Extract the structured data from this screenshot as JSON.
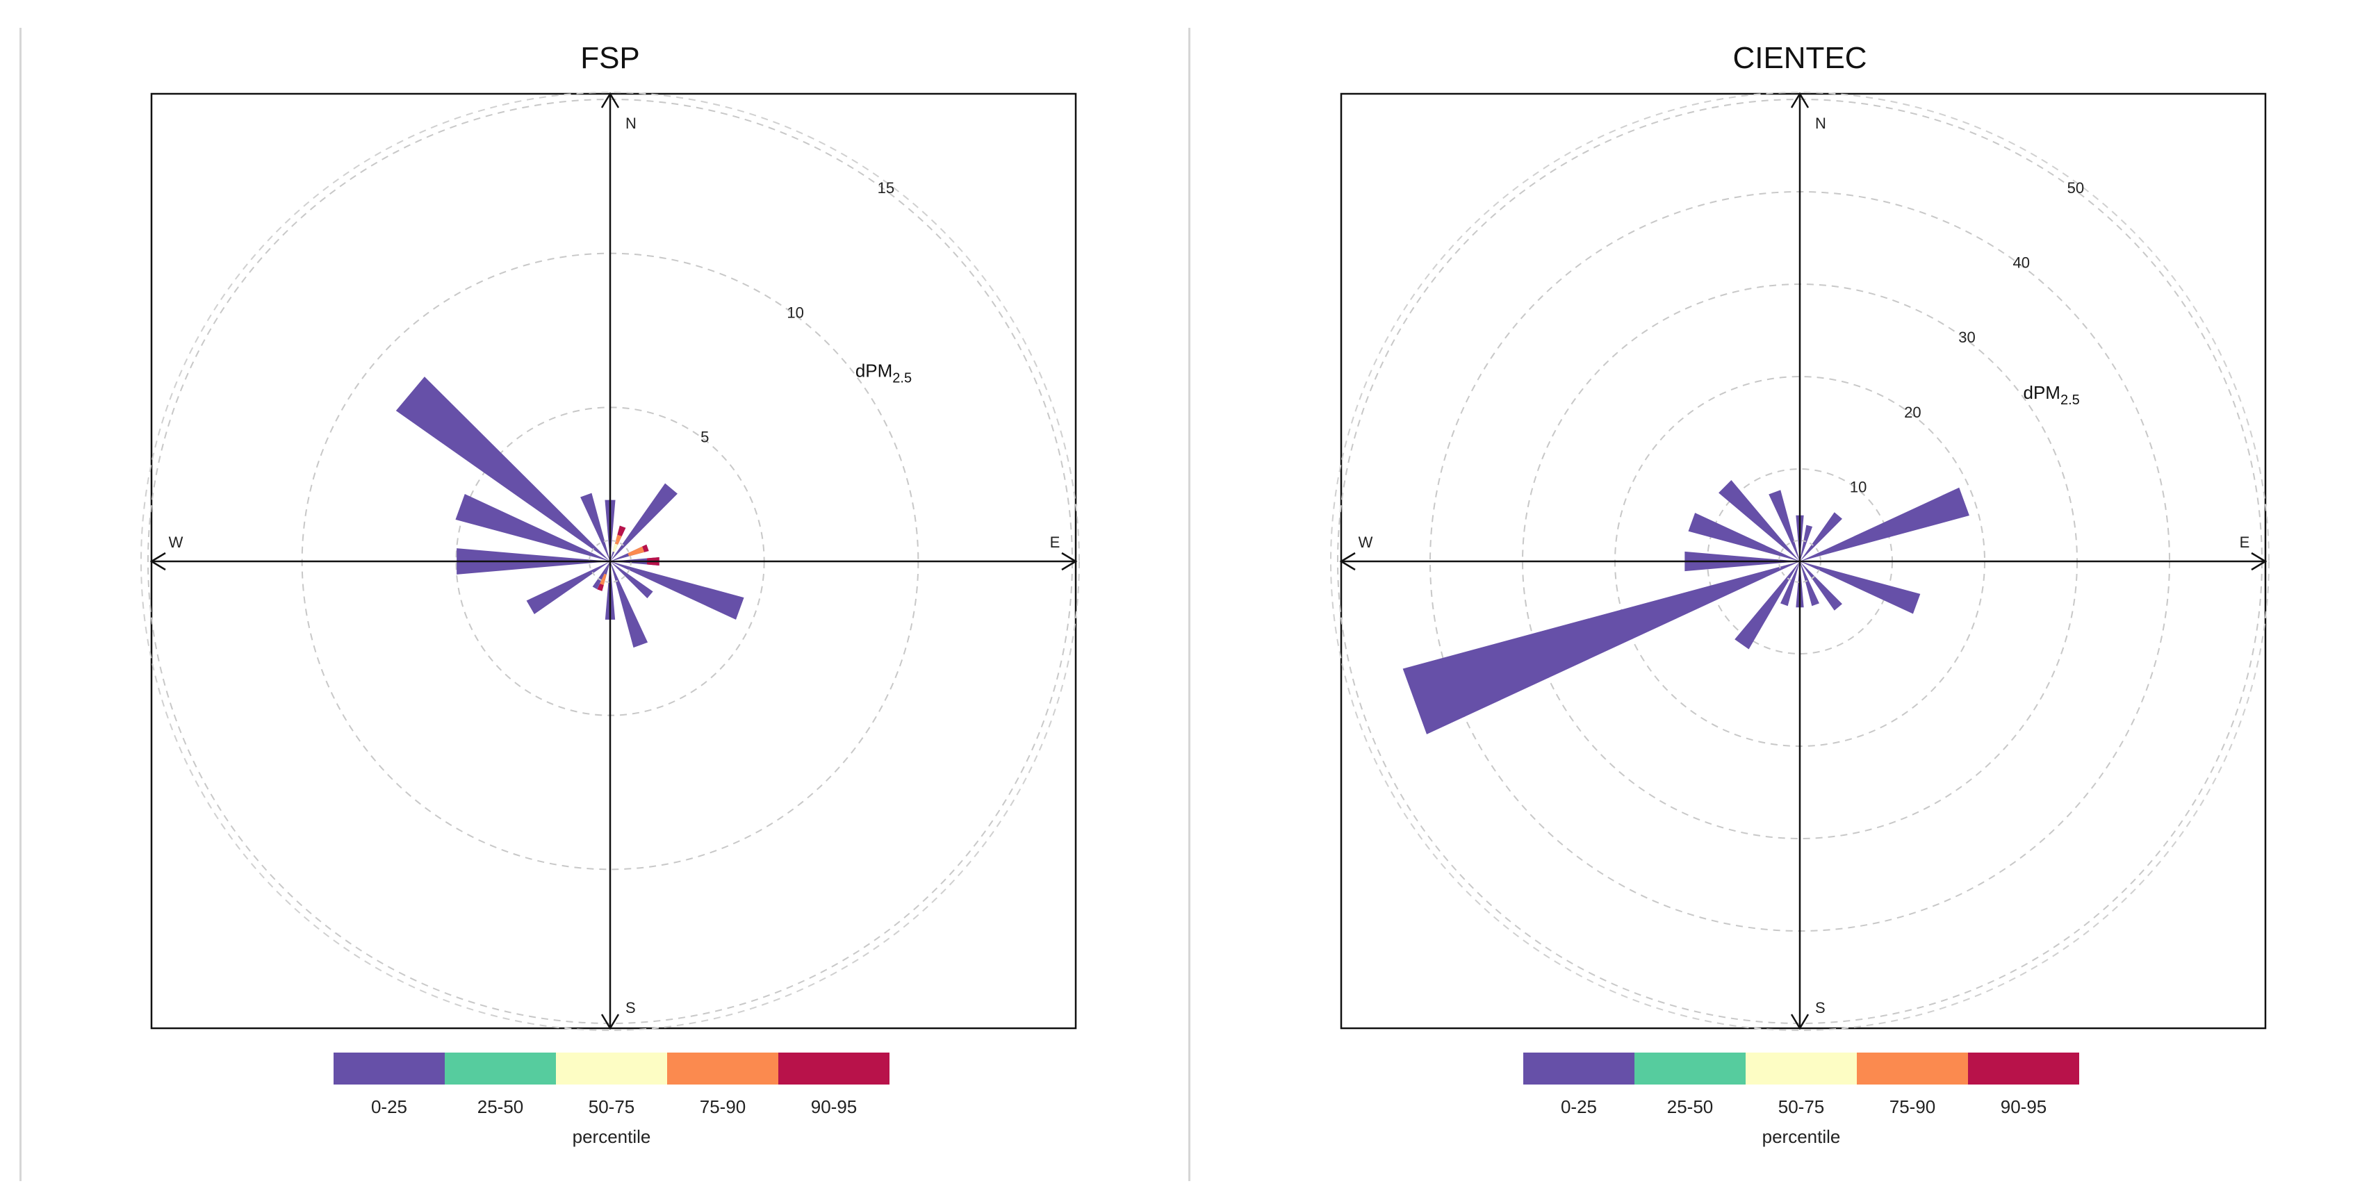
{
  "chart_data": [
    {
      "type": "polar-percentile-rose",
      "title": "FSP",
      "unit_main": "dPM",
      "unit_sub": "2.5",
      "directions": [
        "N",
        "E",
        "S",
        "W"
      ],
      "radial_ticks": [
        5,
        10,
        15
      ],
      "rmax": 15,
      "bins": [
        "0-25",
        "25-50",
        "50-75",
        "75-90",
        "90-95"
      ],
      "legend_title": "percentile",
      "petals": [
        {
          "angle": 0,
          "value": 2.0
        },
        {
          "angle": 20,
          "value": 1.2,
          "upper": [
            {
              "bin": "50-75",
              "to": 0.6
            },
            {
              "bin": "75-90",
              "to": 0.9
            },
            {
              "bin": "90-95",
              "to": 1.2
            }
          ]
        },
        {
          "angle": 40,
          "value": 3.1
        },
        {
          "angle": 70,
          "value": 1.3,
          "upper": [
            {
              "bin": "75-90",
              "to": 1.15
            },
            {
              "bin": "90-95",
              "to": 1.3
            }
          ]
        },
        {
          "angle": 90,
          "value": 1.6,
          "upper": [
            {
              "bin": "90-95",
              "to": 1.6
            }
          ]
        },
        {
          "angle": 110,
          "value": 4.5
        },
        {
          "angle": 130,
          "value": 1.7
        },
        {
          "angle": 160,
          "value": 2.9
        },
        {
          "angle": 180,
          "value": 1.9
        },
        {
          "angle": 200,
          "value": 1.0,
          "upper": [
            {
              "bin": "75-90",
              "to": 0.8
            },
            {
              "bin": "90-95",
              "to": 1.0
            }
          ]
        },
        {
          "angle": 210,
          "value": 1.0
        },
        {
          "angle": 240,
          "value": 3.0
        },
        {
          "angle": 270,
          "value": 5.0
        },
        {
          "angle": 290,
          "value": 5.2
        },
        {
          "angle": 310,
          "value": 8.5
        },
        {
          "angle": 340,
          "value": 2.3
        }
      ]
    },
    {
      "type": "polar-percentile-rose",
      "title": "CIENTEC",
      "unit_main": "dPM",
      "unit_sub": "2.5",
      "directions": [
        "N",
        "E",
        "S",
        "W"
      ],
      "radial_ticks": [
        10,
        20,
        30,
        40,
        50
      ],
      "rmax": 50,
      "bins": [
        "0-25",
        "25-50",
        "50-75",
        "75-90",
        "90-95"
      ],
      "legend_title": "percentile",
      "petals": [
        {
          "angle": 0,
          "value": 5.0
        },
        {
          "angle": 15,
          "value": 4.0
        },
        {
          "angle": 40,
          "value": 6.5
        },
        {
          "angle": 70,
          "value": 19.0
        },
        {
          "angle": 110,
          "value": 13.5
        },
        {
          "angle": 140,
          "value": 6.5
        },
        {
          "angle": 160,
          "value": 5.0
        },
        {
          "angle": 180,
          "value": 5.0
        },
        {
          "angle": 200,
          "value": 5.0
        },
        {
          "angle": 215,
          "value": 11.0
        },
        {
          "angle": 250,
          "value": 44.5
        },
        {
          "angle": 270,
          "value": 12.5
        },
        {
          "angle": 290,
          "value": 12.5
        },
        {
          "angle": 315,
          "value": 11.5
        },
        {
          "angle": 340,
          "value": 8.0
        }
      ]
    }
  ],
  "colors": {
    "0-25": "#6650a8",
    "25-50": "#56cc9e",
    "50-75": "#fdfdc4",
    "75-90": "#fb8a4f",
    "90-95": "#b8124a"
  }
}
